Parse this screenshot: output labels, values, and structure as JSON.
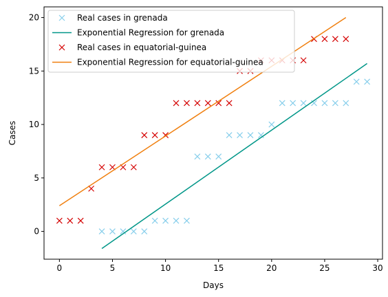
{
  "chart_data": {
    "type": "scatter",
    "xlabel": "Days",
    "ylabel": "Cases",
    "xlim": [
      -1.45,
      30.45
    ],
    "ylim": [
      -2.6,
      21.0
    ],
    "xticks": [
      0,
      5,
      10,
      15,
      20,
      25,
      30
    ],
    "yticks": [
      0,
      5,
      10,
      15,
      20
    ],
    "grid": false,
    "legend": "top-left",
    "series": [
      {
        "name": "Real cases in grenada",
        "kind": "markers",
        "marker": "x",
        "color": "#87ceeb",
        "x": [
          4,
          5,
          6,
          7,
          8,
          9,
          10,
          11,
          12,
          13,
          14,
          15,
          16,
          17,
          18,
          19,
          20,
          21,
          22,
          23,
          24,
          25,
          26,
          27,
          28,
          29
        ],
        "y": [
          0,
          0,
          0,
          0,
          0,
          1,
          1,
          1,
          1,
          7,
          7,
          7,
          9,
          9,
          9,
          9,
          10,
          12,
          12,
          12,
          12,
          12,
          12,
          12,
          14,
          14
        ]
      },
      {
        "name": "Exponential Regression for grenada",
        "kind": "line",
        "color": "#009688",
        "x": [
          4,
          29
        ],
        "y": [
          -1.6,
          15.7
        ]
      },
      {
        "name": "Real cases in equatorial-guinea",
        "kind": "markers",
        "marker": "x",
        "color": "#d40000",
        "x": [
          0,
          1,
          2,
          3,
          4,
          5,
          6,
          7,
          8,
          9,
          10,
          11,
          12,
          13,
          14,
          15,
          16,
          17,
          18,
          19,
          20,
          21,
          22,
          23,
          24,
          25,
          26,
          27
        ],
        "y": [
          1,
          1,
          1,
          4,
          6,
          6,
          6,
          6,
          9,
          9,
          9,
          12,
          12,
          12,
          12,
          12,
          12,
          15,
          15,
          16,
          16,
          16,
          16,
          16,
          18,
          18,
          18,
          18
        ]
      },
      {
        "name": "Exponential Regression for equatorial-guinea",
        "kind": "line",
        "color": "#f07f0e",
        "x": [
          0,
          27
        ],
        "y": [
          2.4,
          20.0
        ]
      }
    ]
  }
}
